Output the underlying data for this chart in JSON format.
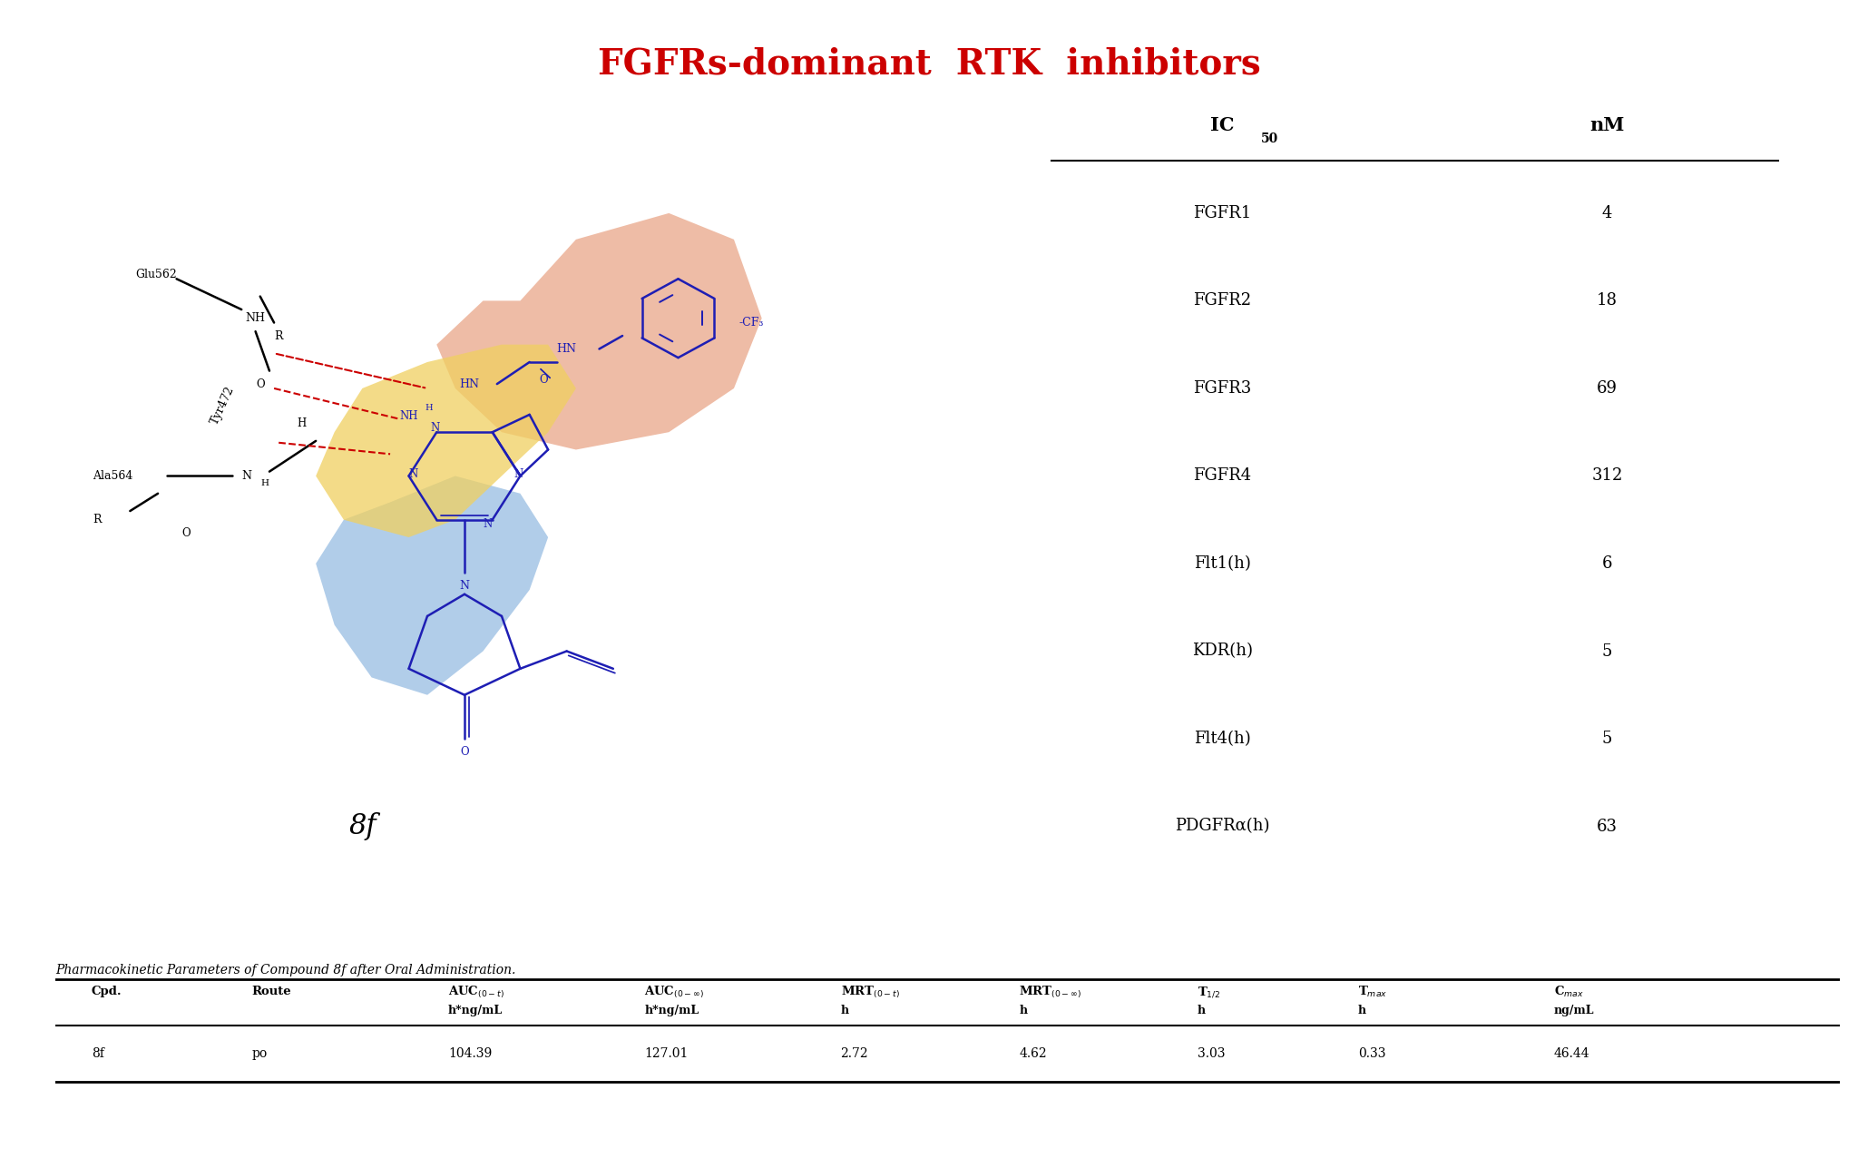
{
  "title": "FGFRs-dominant  RTK  inhibitors",
  "title_color": "#CC0000",
  "title_fontsize": 28,
  "ic50_header": [
    "IC₅₀",
    "nM"
  ],
  "ic50_rows": [
    [
      "FGFR1",
      "4"
    ],
    [
      "FGFR2",
      "18"
    ],
    [
      "FGFR3",
      "69"
    ],
    [
      "FGFR4",
      "312"
    ],
    [
      "Flt1(h)",
      "6"
    ],
    [
      "KDR(h)",
      "5"
    ],
    [
      "Flt4(h)",
      "5"
    ],
    [
      "PDGFRα(h)",
      "63"
    ]
  ],
  "pk_caption": "Pharmacokinetic Parameters of Compound 8f after Oral Administration.",
  "pk_headers_line1": [
    "Cpd.",
    "Route",
    "AUC₀₋ₜ₎",
    "AUC₀₋∞₎",
    "MRT₀₋ₜ₎",
    "MRT₀₋∞₎",
    "T₁₂",
    "Tₘₐₓ",
    "Cₘₐₓ"
  ],
  "pk_headers_line2": [
    "",
    "",
    "h*ng/mL",
    "h*ng/mL",
    "h",
    "h",
    "h",
    "h",
    "ng/mL"
  ],
  "pk_col_headers": [
    [
      "Cpd.",
      ""
    ],
    [
      "Route",
      ""
    ],
    [
      "AUC(0-t)",
      "h*ng/mL"
    ],
    [
      "AUC(0-∞)",
      "h*ng/mL"
    ],
    [
      "MRT(0-t)",
      "h"
    ],
    [
      "MRT(0-∞)",
      "h"
    ],
    [
      "T1/2",
      "h"
    ],
    [
      "Tmax",
      "h"
    ],
    [
      "Cmax",
      "ng/mL"
    ]
  ],
  "pk_data": [
    "8f",
    "po",
    "104.39",
    "127.01",
    "2.72",
    "4.62",
    "3.03",
    "0.33",
    "46.44"
  ],
  "compound_label": "8f",
  "background_color": "#ffffff"
}
